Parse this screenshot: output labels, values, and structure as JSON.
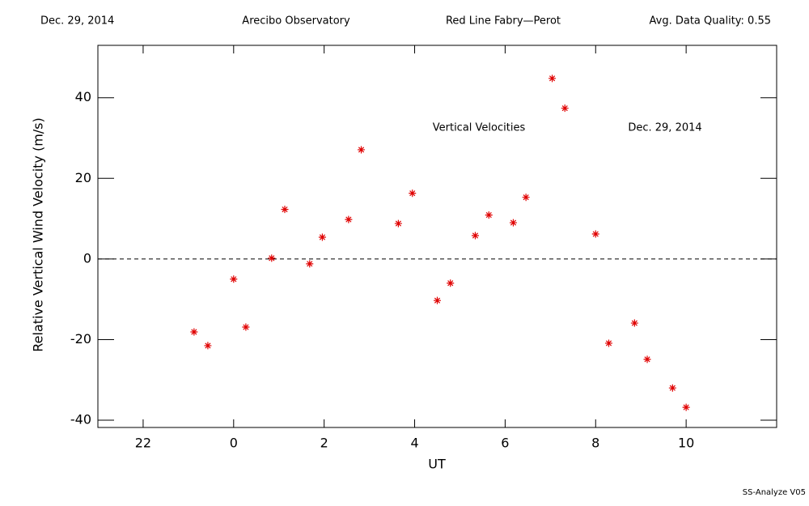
{
  "header": [
    "Dec. 29, 2014",
    "Arecibo Observatory",
    "Red Line Fabry—Perot",
    "Avg. Data Quality: 0.55"
  ],
  "footer": "SS-Analyze V05",
  "chart_data": {
    "type": "scatter",
    "xlabel": "UT",
    "ylabel": "Relative Vertical Wind Velocity (m/s)",
    "annotations": [
      "Vertical Velocities",
      "Dec. 29, 2014"
    ],
    "x": [
      -0.875,
      -0.57,
      0,
      0.27,
      0.84,
      1.13,
      1.68,
      1.96,
      2.54,
      2.82,
      3.64,
      3.95,
      4.5,
      4.79,
      5.34,
      5.64,
      6.18,
      6.46,
      7.04,
      7.32,
      8.0,
      8.29,
      8.86,
      9.14,
      9.7,
      10.0
    ],
    "series": [
      {
        "color": "#e00000",
        "values": [
          -18.1,
          -21.5,
          -5.0,
          -16.9,
          0.2,
          12.3,
          -1.2,
          5.4,
          9.8,
          27.1,
          8.8,
          16.3,
          -10.3,
          -6.0,
          5.8,
          10.9,
          9.0,
          15.3,
          44.8,
          37.4,
          6.2,
          -20.9,
          -15.9,
          -24.9,
          -32.0,
          -36.8
        ]
      }
    ],
    "xlim": [
      -3,
      12
    ],
    "xticks": [
      {
        "value": -2,
        "label": "22"
      },
      0,
      2,
      4,
      6,
      8,
      10
    ],
    "ylim": [
      -41.8,
      53
    ],
    "yticks": [
      -40,
      -20,
      0,
      20,
      40
    ],
    "reference_line": 0
  }
}
